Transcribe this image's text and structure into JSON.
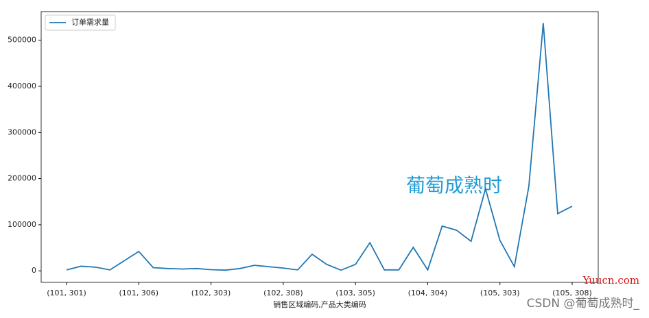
{
  "chart_data": {
    "type": "line",
    "x_label": "销售区域编码,产品大类编码",
    "categories": [
      "(101, 301)",
      null,
      null,
      null,
      null,
      "(101, 306)",
      null,
      null,
      null,
      null,
      "(102, 303)",
      null,
      null,
      null,
      null,
      "(102, 308)",
      null,
      null,
      null,
      null,
      "(103, 305)",
      null,
      null,
      null,
      null,
      "(104, 304)",
      null,
      null,
      null,
      null,
      "(105, 303)",
      null,
      null,
      null,
      null,
      "(105, 308)"
    ],
    "series": [
      {
        "name": "订单需求量",
        "color": "#1f77b4",
        "values": [
          2000,
          10000,
          8000,
          2000,
          22000,
          42000,
          7000,
          5000,
          4000,
          5000,
          2500,
          1500,
          5000,
          12000,
          9000,
          6000,
          2000,
          36000,
          14000,
          1500,
          14000,
          61000,
          2000,
          2000,
          51000,
          2000,
          97000,
          88000,
          64000,
          178000,
          66000,
          9000,
          183000,
          537000,
          124000,
          140000
        ]
      }
    ],
    "ylim": [
      -25000,
      562000
    ],
    "yticks": [
      0,
      100000,
      200000,
      300000,
      400000,
      500000
    ],
    "legend": "upper-left",
    "annotations": [
      "葡萄成熟时",
      "Yuucn.com",
      "CSDN @葡萄成熟时_"
    ]
  }
}
